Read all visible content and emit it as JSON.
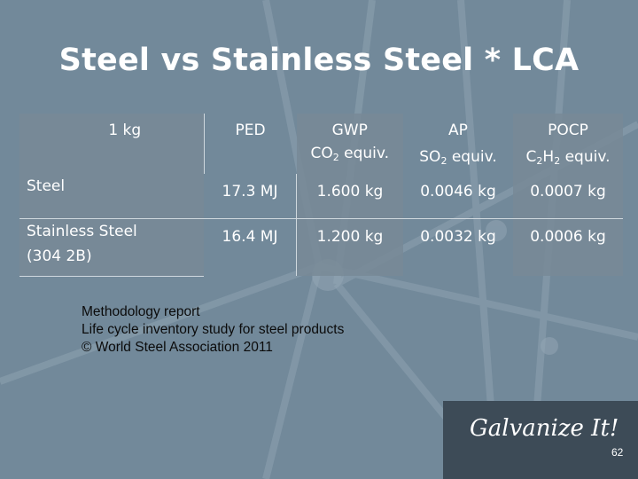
{
  "slide": {
    "title": "Steel vs Stainless Steel * LCA",
    "page_number": "62",
    "brand": "Galvanize It!"
  },
  "table": {
    "corner": "1 kg",
    "headers": [
      {
        "line1": "PED",
        "line2_main": "",
        "line2_sub": "",
        "line2_main2": ""
      },
      {
        "line1": "GWP",
        "line2_main": "CO",
        "line2_sub": "2",
        "line2_main2": " equiv."
      },
      {
        "line1": "AP",
        "line2_main": "SO",
        "line2_sub": "2",
        "line2_main2": " equiv."
      },
      {
        "line1": "POCP",
        "line2_main": "C",
        "line2_sub": "2",
        "line2_main2": "H",
        "line2_sub2": "2",
        "line2_main3": " equiv."
      }
    ],
    "rows": [
      {
        "label": "Steel",
        "label2": "",
        "values": [
          "17.3 MJ",
          "1.600 kg",
          "0.0046 kg",
          "0.0007 kg"
        ]
      },
      {
        "label": "Stainless Steel",
        "label2": "(304 2B)",
        "values": [
          "16.4 MJ",
          "1.200 kg",
          "0.0032 kg",
          "0.0006 kg"
        ]
      }
    ]
  },
  "notes": {
    "line1": "Methodology report",
    "line2": "Life cycle inventory study for steel products",
    "line3": "© World Steel Association 2011"
  },
  "colors": {
    "background": "#72899a",
    "brand_box": "#3d4b57",
    "text_light": "#ffffff",
    "text_dark": "#0b0b0b"
  }
}
